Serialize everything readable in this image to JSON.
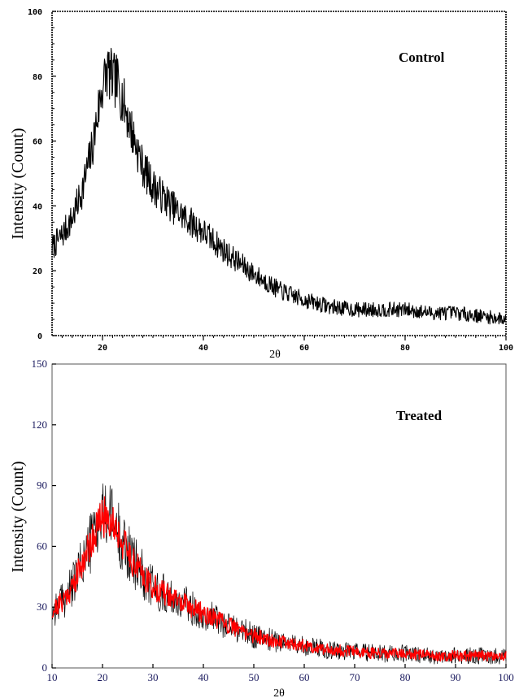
{
  "chart_data": [
    {
      "type": "line",
      "panel": "top",
      "annotation": "Control",
      "xlabel": "2θ",
      "ylabel": "Intensity (Count)",
      "xlim": [
        10,
        100
      ],
      "ylim": [
        0,
        100
      ],
      "xticks": [
        20,
        40,
        60,
        80,
        100
      ],
      "xtick_labels": [
        "20",
        "40",
        "60",
        "80",
        "100"
      ],
      "yticks": [
        0,
        20,
        40,
        60,
        80,
        100
      ],
      "ytick_labels": [
        "0",
        "20",
        "40",
        "60",
        "80",
        "100"
      ],
      "grid": false,
      "colors": {
        "series": "#000000",
        "axis": "#000000"
      },
      "series": [
        {
          "name": "",
          "x": [
            10,
            12,
            14,
            16,
            18,
            19,
            20,
            21,
            22,
            23,
            24,
            26,
            28,
            30,
            35,
            40,
            45,
            50,
            55,
            60,
            65,
            70,
            75,
            80,
            85,
            90,
            95,
            100
          ],
          "y": [
            27,
            31,
            36,
            45,
            58,
            68,
            77,
            82,
            79,
            78,
            73,
            62,
            52,
            46,
            38,
            32,
            25,
            19,
            14,
            11,
            9,
            8,
            8,
            8,
            7,
            7,
            6,
            5
          ]
        }
      ]
    },
    {
      "type": "line",
      "panel": "bottom",
      "annotation": "Treated",
      "xlabel": "2θ",
      "ylabel": "Intensity (Count)",
      "xlim": [
        10,
        100
      ],
      "ylim": [
        0,
        150
      ],
      "xticks": [
        10,
        20,
        30,
        40,
        50,
        60,
        70,
        80,
        90,
        100
      ],
      "xtick_labels": [
        "10",
        "20",
        "30",
        "40",
        "50",
        "60",
        "70",
        "80",
        "90",
        "100"
      ],
      "yticks": [
        0,
        30,
        60,
        90,
        120,
        150
      ],
      "ytick_labels": [
        "0",
        "30",
        "60",
        "90",
        "120",
        "150"
      ],
      "grid": false,
      "colors": {
        "series": "#ff0000",
        "noise": "#000000",
        "axis": "#555555",
        "ticklabel": "#1a1a5e"
      },
      "series": [
        {
          "name": "",
          "x": [
            10,
            12,
            14,
            16,
            18,
            19,
            20,
            21,
            22,
            23,
            24,
            26,
            28,
            30,
            35,
            40,
            45,
            50,
            55,
            60,
            65,
            70,
            75,
            80,
            85,
            90,
            95,
            100
          ],
          "y": [
            28,
            33,
            40,
            52,
            64,
            70,
            74,
            75,
            72,
            68,
            62,
            53,
            46,
            40,
            33,
            27,
            21,
            16,
            13,
            11,
            9,
            8,
            7,
            7,
            6,
            6,
            6,
            6
          ]
        }
      ]
    }
  ]
}
